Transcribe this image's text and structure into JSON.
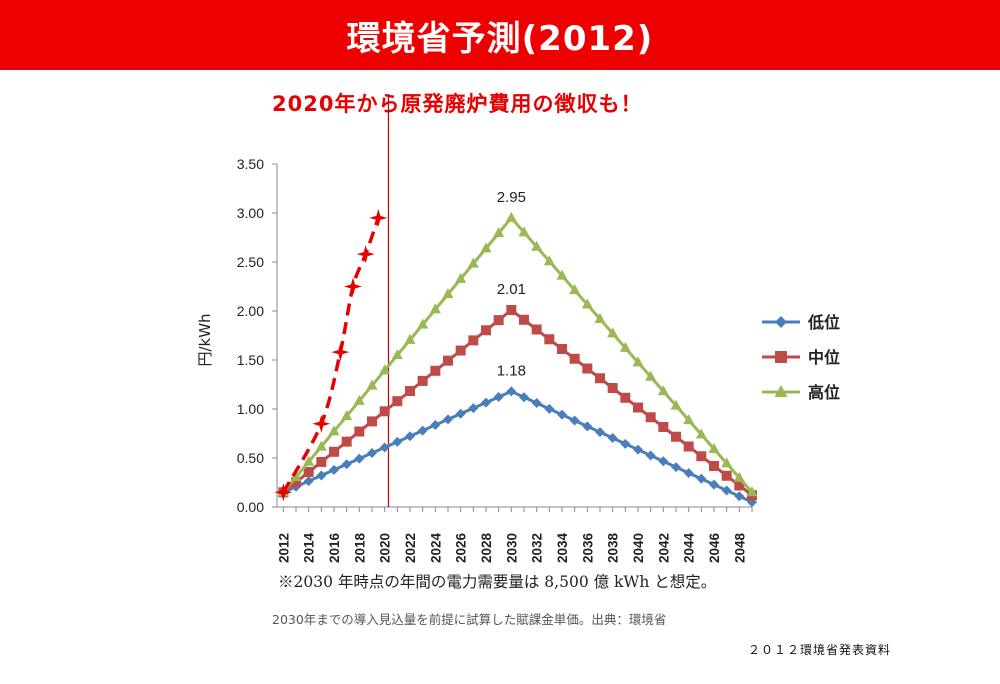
{
  "header": {
    "title": "環境省予測(2012)"
  },
  "subtitle": "2020年から原発廃炉費用の徴収も！",
  "chart_data": {
    "type": "line",
    "ylabel": "円/kWh",
    "ylim": [
      0,
      3.5
    ],
    "yticks": [
      "0.00",
      "0.50",
      "1.00",
      "1.50",
      "2.00",
      "2.50",
      "3.00",
      "3.50"
    ],
    "xticks": [
      "2012",
      "2014",
      "2016",
      "2018",
      "2020",
      "2022",
      "2024",
      "2026",
      "2028",
      "2030",
      "2032",
      "2034",
      "2036",
      "2038",
      "2040",
      "2042",
      "2044",
      "2046",
      "2048"
    ],
    "x_start": 2012,
    "x_end": 2049,
    "x_range": [
      2011.5,
      2049
    ],
    "vline_x": 2020.3,
    "legend_position": "right",
    "colors": {
      "low": "#4a7ebb",
      "mid": "#be4b48",
      "high": "#98b954",
      "dashed": "#e60000",
      "vline": "#c00000"
    },
    "series": [
      {
        "name": "低位",
        "peak_year": 2030,
        "start_value": 0.15,
        "peak": 1.18,
        "end_value": 0.05,
        "marker": "diamond"
      },
      {
        "name": "中位",
        "peak_year": 2030,
        "start_value": 0.15,
        "peak": 2.01,
        "end_value": 0.12,
        "marker": "square"
      },
      {
        "name": "高位",
        "peak_year": 2030,
        "start_value": 0.15,
        "peak": 2.95,
        "end_value": 0.15,
        "marker": "triangle"
      }
    ],
    "dashed_series": {
      "x": [
        2012,
        2015,
        2016.5,
        2017.5,
        2018.5,
        2019.5
      ],
      "y": [
        0.15,
        0.85,
        1.58,
        2.25,
        2.58,
        2.95
      ]
    },
    "annotations": [
      "2.95",
      "2.01",
      "1.18"
    ]
  },
  "note": "※2030 年時点の年間の電力需要量は 8,500 億 kWh と想定。",
  "source": "2030年までの導入見込量を前提に試算した賦課金単価。出典：環境省",
  "doc_label": "２０１２環境省発表資料"
}
